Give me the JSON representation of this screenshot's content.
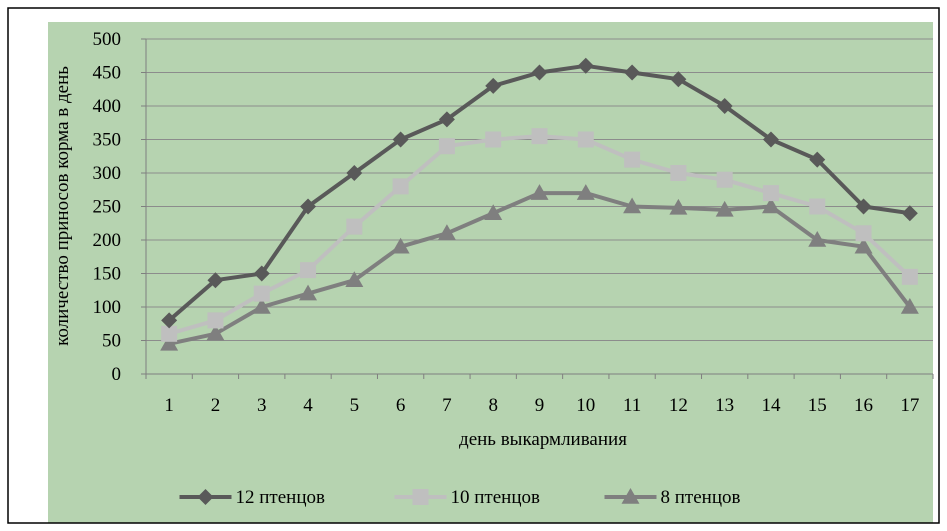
{
  "chart_data": {
    "type": "line",
    "title": "",
    "xlabel": "день выкармливания",
    "ylabel": "количество приносов корма в день",
    "categories": [
      "1",
      "2",
      "3",
      "4",
      "5",
      "6",
      "7",
      "8",
      "9",
      "10",
      "11",
      "12",
      "13",
      "14",
      "15",
      "16",
      "17"
    ],
    "ylim": [
      0,
      500
    ],
    "yticks": [
      0,
      50,
      100,
      150,
      200,
      250,
      300,
      350,
      400,
      450,
      500
    ],
    "grid": true,
    "legend_position": "bottom",
    "plot_background": "#b6d3b0",
    "series": [
      {
        "name": "12 птенцов",
        "color": "#595959",
        "marker": "diamond",
        "values": [
          80,
          140,
          150,
          250,
          300,
          350,
          380,
          430,
          450,
          460,
          450,
          440,
          400,
          350,
          320,
          250,
          240
        ]
      },
      {
        "name": "10 птенцов",
        "color": "#bfbfbf",
        "marker": "square",
        "values": [
          60,
          80,
          120,
          155,
          220,
          280,
          340,
          350,
          355,
          350,
          320,
          300,
          290,
          270,
          250,
          210,
          145
        ]
      },
      {
        "name": "8 птенцов",
        "color": "#7f7f7f",
        "marker": "triangle",
        "values": [
          45,
          60,
          100,
          120,
          140,
          190,
          210,
          240,
          270,
          270,
          250,
          248,
          245,
          250,
          200,
          190,
          100
        ]
      }
    ]
  }
}
